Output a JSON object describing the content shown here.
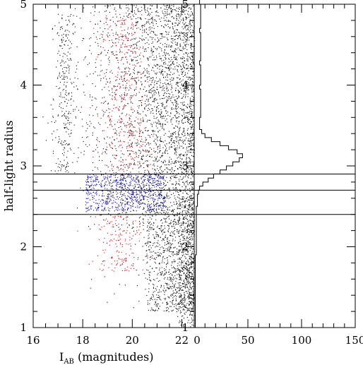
{
  "chart_data": [
    {
      "type": "scatter",
      "title": "",
      "xlabel_main": "I",
      "xlabel_sub": "AB",
      "xlabel_rest": " (magnitudes)",
      "ylabel": "half-light radius",
      "xlim": [
        16,
        22.5
      ],
      "ylim": [
        1,
        5
      ],
      "xticks": [
        "16",
        "18",
        "20",
        "22"
      ],
      "yticks": [
        "1",
        "2",
        "3",
        "4",
        "5"
      ],
      "series_colors": {
        "black": "#000000",
        "red": "#e00000",
        "blue": "#0000dd"
      },
      "hlines": [
        2.4,
        2.7,
        2.9
      ],
      "vline": 22.5
    },
    {
      "type": "histogram",
      "orientation": "horizontal",
      "xticks": [
        "0",
        "50",
        "100",
        "150"
      ],
      "yticks": [
        "1",
        "2",
        "3",
        "4",
        "5"
      ],
      "xlim": [
        0,
        150
      ],
      "ylim": [
        1,
        5
      ],
      "bin_width": 0.05,
      "bins_start": 1.0,
      "counts": [
        1,
        1,
        1,
        1,
        1,
        1,
        1,
        1,
        1,
        1,
        1,
        1,
        1,
        1,
        1,
        1,
        1,
        1,
        2,
        2,
        2,
        2,
        2,
        2,
        2,
        2,
        2,
        2,
        2,
        2,
        3,
        3,
        3,
        4,
        5,
        8,
        13,
        18,
        24,
        30,
        36,
        42,
        45,
        40,
        32,
        24,
        16,
        10,
        7,
        5,
        5,
        5,
        6,
        6,
        6,
        6,
        6,
        6,
        6,
        5,
        6,
        6,
        6,
        6,
        6,
        5,
        6,
        6,
        6,
        6,
        6,
        6,
        6,
        5,
        6,
        6,
        6,
        6,
        6,
        6,
        5,
        5,
        5,
        5,
        5
      ]
    }
  ]
}
